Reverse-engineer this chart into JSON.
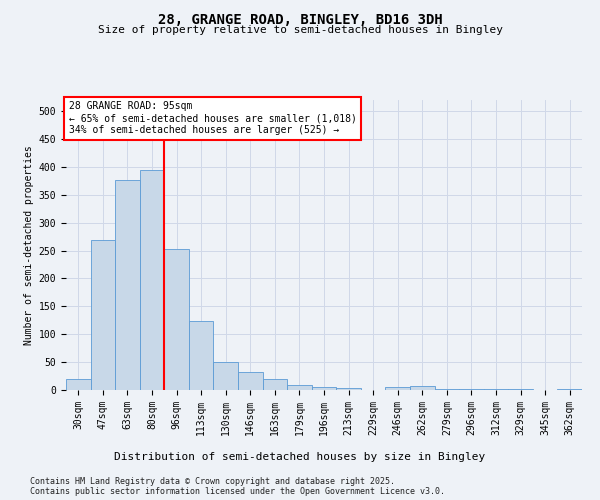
{
  "title1": "28, GRANGE ROAD, BINGLEY, BD16 3DH",
  "title2": "Size of property relative to semi-detached houses in Bingley",
  "xlabel": "Distribution of semi-detached houses by size in Bingley",
  "ylabel": "Number of semi-detached properties",
  "categories": [
    "30sqm",
    "47sqm",
    "63sqm",
    "80sqm",
    "96sqm",
    "113sqm",
    "130sqm",
    "146sqm",
    "163sqm",
    "179sqm",
    "196sqm",
    "213sqm",
    "229sqm",
    "246sqm",
    "262sqm",
    "279sqm",
    "296sqm",
    "312sqm",
    "329sqm",
    "345sqm",
    "362sqm"
  ],
  "values": [
    19,
    269,
    377,
    395,
    252,
    124,
    50,
    33,
    19,
    9,
    6,
    4,
    0,
    5,
    8,
    1,
    2,
    2,
    1,
    0,
    2
  ],
  "bar_color": "#c8d8e8",
  "bar_edge_color": "#5b9bd5",
  "grid_color": "#d0d8e8",
  "vline_position": 3.5,
  "vline_color": "red",
  "annotation_title": "28 GRANGE ROAD: 95sqm",
  "annotation_line1": "← 65% of semi-detached houses are smaller (1,018)",
  "annotation_line2": "34% of semi-detached houses are larger (525) →",
  "annotation_box_color": "red",
  "ylim": [
    0,
    520
  ],
  "yticks": [
    0,
    50,
    100,
    150,
    200,
    250,
    300,
    350,
    400,
    450,
    500
  ],
  "footer1": "Contains HM Land Registry data © Crown copyright and database right 2025.",
  "footer2": "Contains public sector information licensed under the Open Government Licence v3.0.",
  "background_color": "#eef2f7",
  "title_fontsize": 10,
  "subtitle_fontsize": 8,
  "ylabel_fontsize": 7,
  "xlabel_fontsize": 8,
  "tick_fontsize": 7,
  "annotation_fontsize": 7,
  "footer_fontsize": 6
}
